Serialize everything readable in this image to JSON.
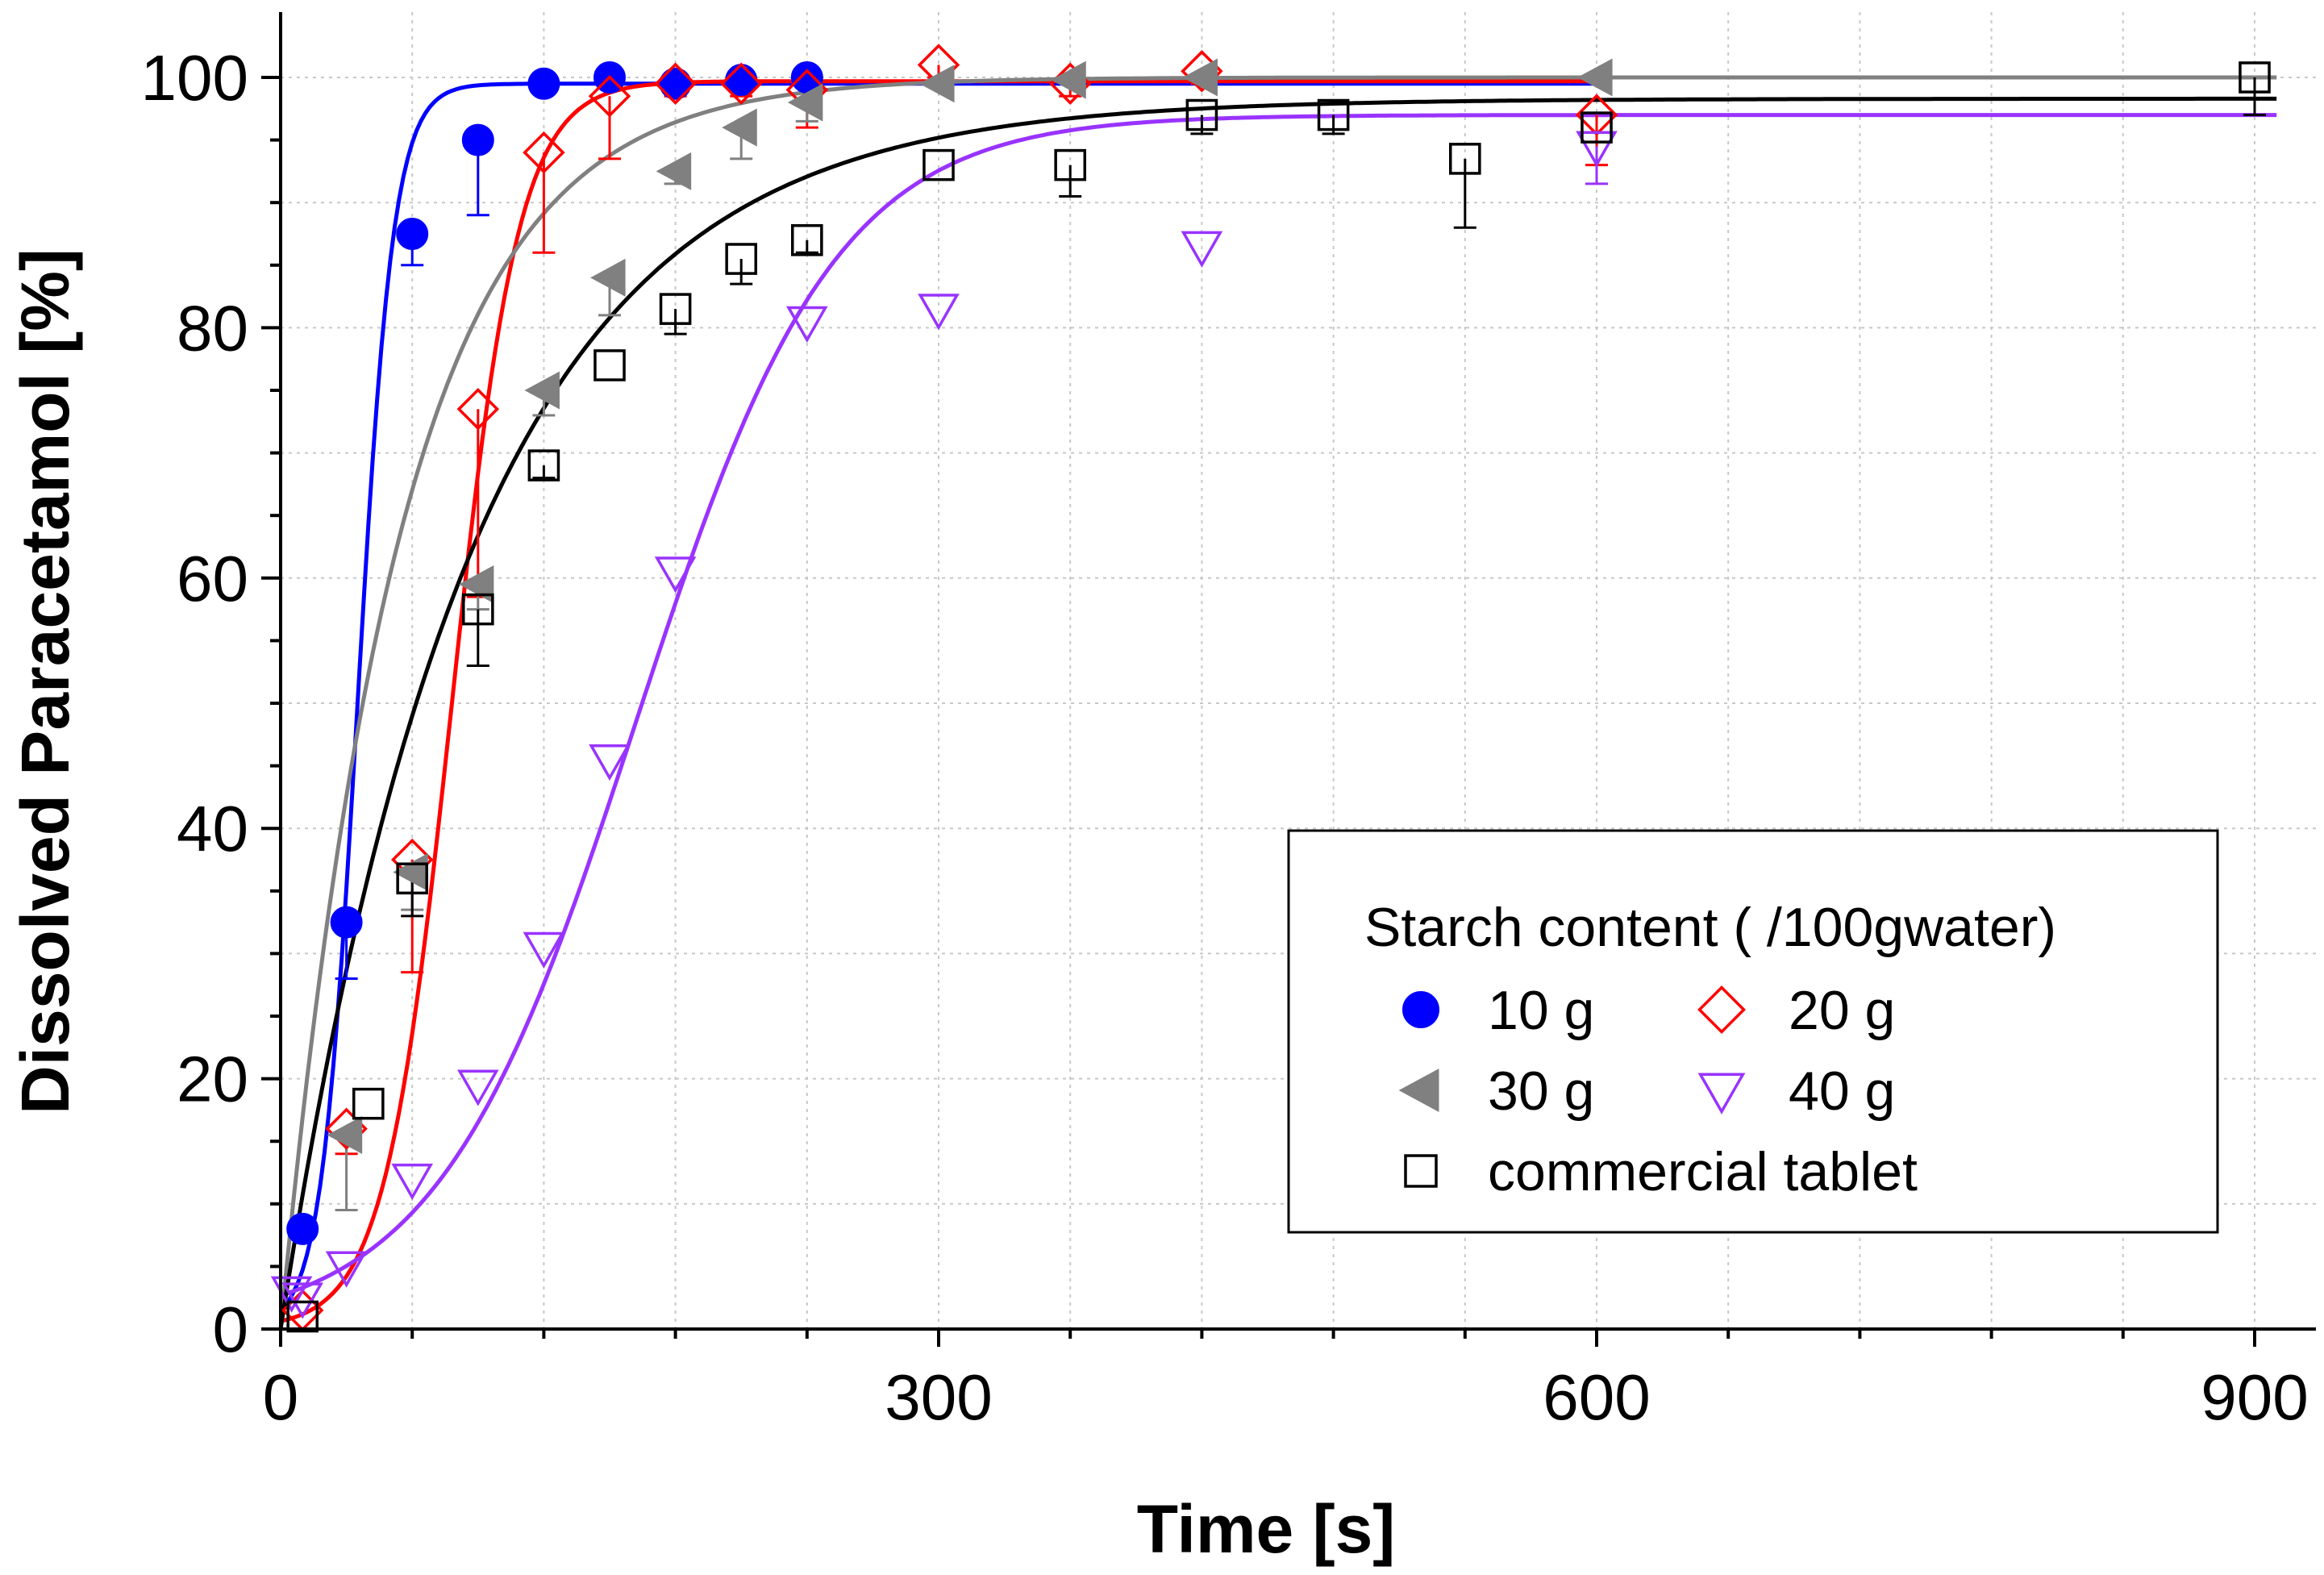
{
  "chart_data": {
    "type": "scatter",
    "title": "",
    "xlabel": "Time [s]",
    "ylabel": "Dissolved Paracetamol [%]",
    "xlim": [
      0,
      930
    ],
    "ylim": [
      0,
      105
    ],
    "xticks": [
      0,
      300,
      600,
      900
    ],
    "yticks": [
      0,
      20,
      40,
      60,
      80,
      100
    ],
    "x_tick_labels": [
      "0",
      "300",
      "600",
      "900"
    ],
    "y_tick_labels": [
      "0",
      "20",
      "40",
      "60",
      "80",
      "100"
    ],
    "grid": true,
    "legend_title": "Starch content ( /100gwater)",
    "legend_position": "bottom-right",
    "series": [
      {
        "name": "10 g",
        "marker": "filled-circle",
        "color": "#0000ff",
        "x": [
          10,
          30,
          60,
          90,
          120,
          150,
          180,
          210,
          240
        ],
        "y": [
          8,
          32.5,
          87.5,
          95,
          99.5,
          100,
          99.5,
          99.8,
          100
        ],
        "err": [
          0,
          4.5,
          2.5,
          6,
          0,
          0,
          0,
          0,
          0
        ],
        "fit": {
          "model": "logistic",
          "max": 99.5,
          "midpoint": 35,
          "rate": 0.12
        }
      },
      {
        "name": "20 g",
        "marker": "open-diamond",
        "color": "#ff0000",
        "x": [
          10,
          30,
          60,
          90,
          120,
          150,
          180,
          210,
          240,
          300,
          360,
          420,
          600
        ],
        "y": [
          1.5,
          16,
          37.5,
          73.5,
          94,
          98.5,
          99.5,
          99.5,
          99,
          101,
          99.5,
          100.5,
          97
        ],
        "err": [
          0,
          2,
          9,
          15,
          8,
          5,
          1,
          1,
          3,
          1,
          1,
          1,
          4
        ],
        "fit": {
          "model": "logistic",
          "max": 99.7,
          "midpoint": 78,
          "rate": 0.065
        }
      },
      {
        "name": "30 g",
        "marker": "filled-left-triangle",
        "color": "#808080",
        "x": [
          30,
          60,
          90,
          120,
          150,
          180,
          210,
          240,
          300,
          360,
          420,
          600
        ],
        "y": [
          15.5,
          36.5,
          59.5,
          75,
          84,
          92.5,
          96,
          98,
          99.5,
          99.8,
          100,
          100
        ],
        "err": [
          6,
          3,
          2,
          2,
          3,
          1,
          2.5,
          1.5,
          0,
          0,
          0,
          0
        ],
        "fit": {
          "model": "first-order",
          "max": 100,
          "k": 0.0185
        }
      },
      {
        "name": "40 g",
        "marker": "open-down-triangle",
        "color": "#9933ff",
        "x": [
          5,
          10,
          30,
          60,
          90,
          120,
          150,
          180,
          240,
          300,
          420,
          600
        ],
        "y": [
          3,
          2.5,
          5,
          12,
          19.5,
          30.5,
          45.5,
          60.5,
          80.5,
          81.5,
          86.5,
          94.5
        ],
        "err": [
          0,
          0,
          0,
          0,
          0,
          0,
          0,
          0,
          0,
          0,
          0,
          3
        ],
        "fit": {
          "model": "logistic",
          "max": 97,
          "midpoint": 162,
          "rate": 0.022
        }
      },
      {
        "name": "commercial tablet",
        "marker": "open-square",
        "color": "#000000",
        "x": [
          10,
          40,
          60,
          90,
          120,
          150,
          180,
          210,
          240,
          300,
          360,
          420,
          480,
          540,
          600,
          900
        ],
        "y": [
          1,
          18,
          36,
          57.5,
          69,
          77,
          81.5,
          85.5,
          87,
          93,
          93,
          97,
          97,
          93.5,
          96,
          100
        ],
        "err": [
          0,
          0,
          3,
          4.5,
          1,
          0,
          2,
          2,
          1,
          0,
          2.5,
          1.5,
          1.5,
          5.5,
          0,
          3
        ],
        "fit": {
          "model": "first-order",
          "max": 98.3,
          "k": 0.0115
        }
      }
    ],
    "legend": [
      {
        "label": "10 g",
        "marker": "filled-circle",
        "color": "#0000ff"
      },
      {
        "label": "20 g",
        "marker": "open-diamond",
        "color": "#ff0000"
      },
      {
        "label": "30 g",
        "marker": "filled-left-triangle",
        "color": "#808080"
      },
      {
        "label": "40 g",
        "marker": "open-down-triangle",
        "color": "#9933ff"
      },
      {
        "label": "commercial tablet",
        "marker": "open-square",
        "color": "#000000"
      }
    ]
  }
}
